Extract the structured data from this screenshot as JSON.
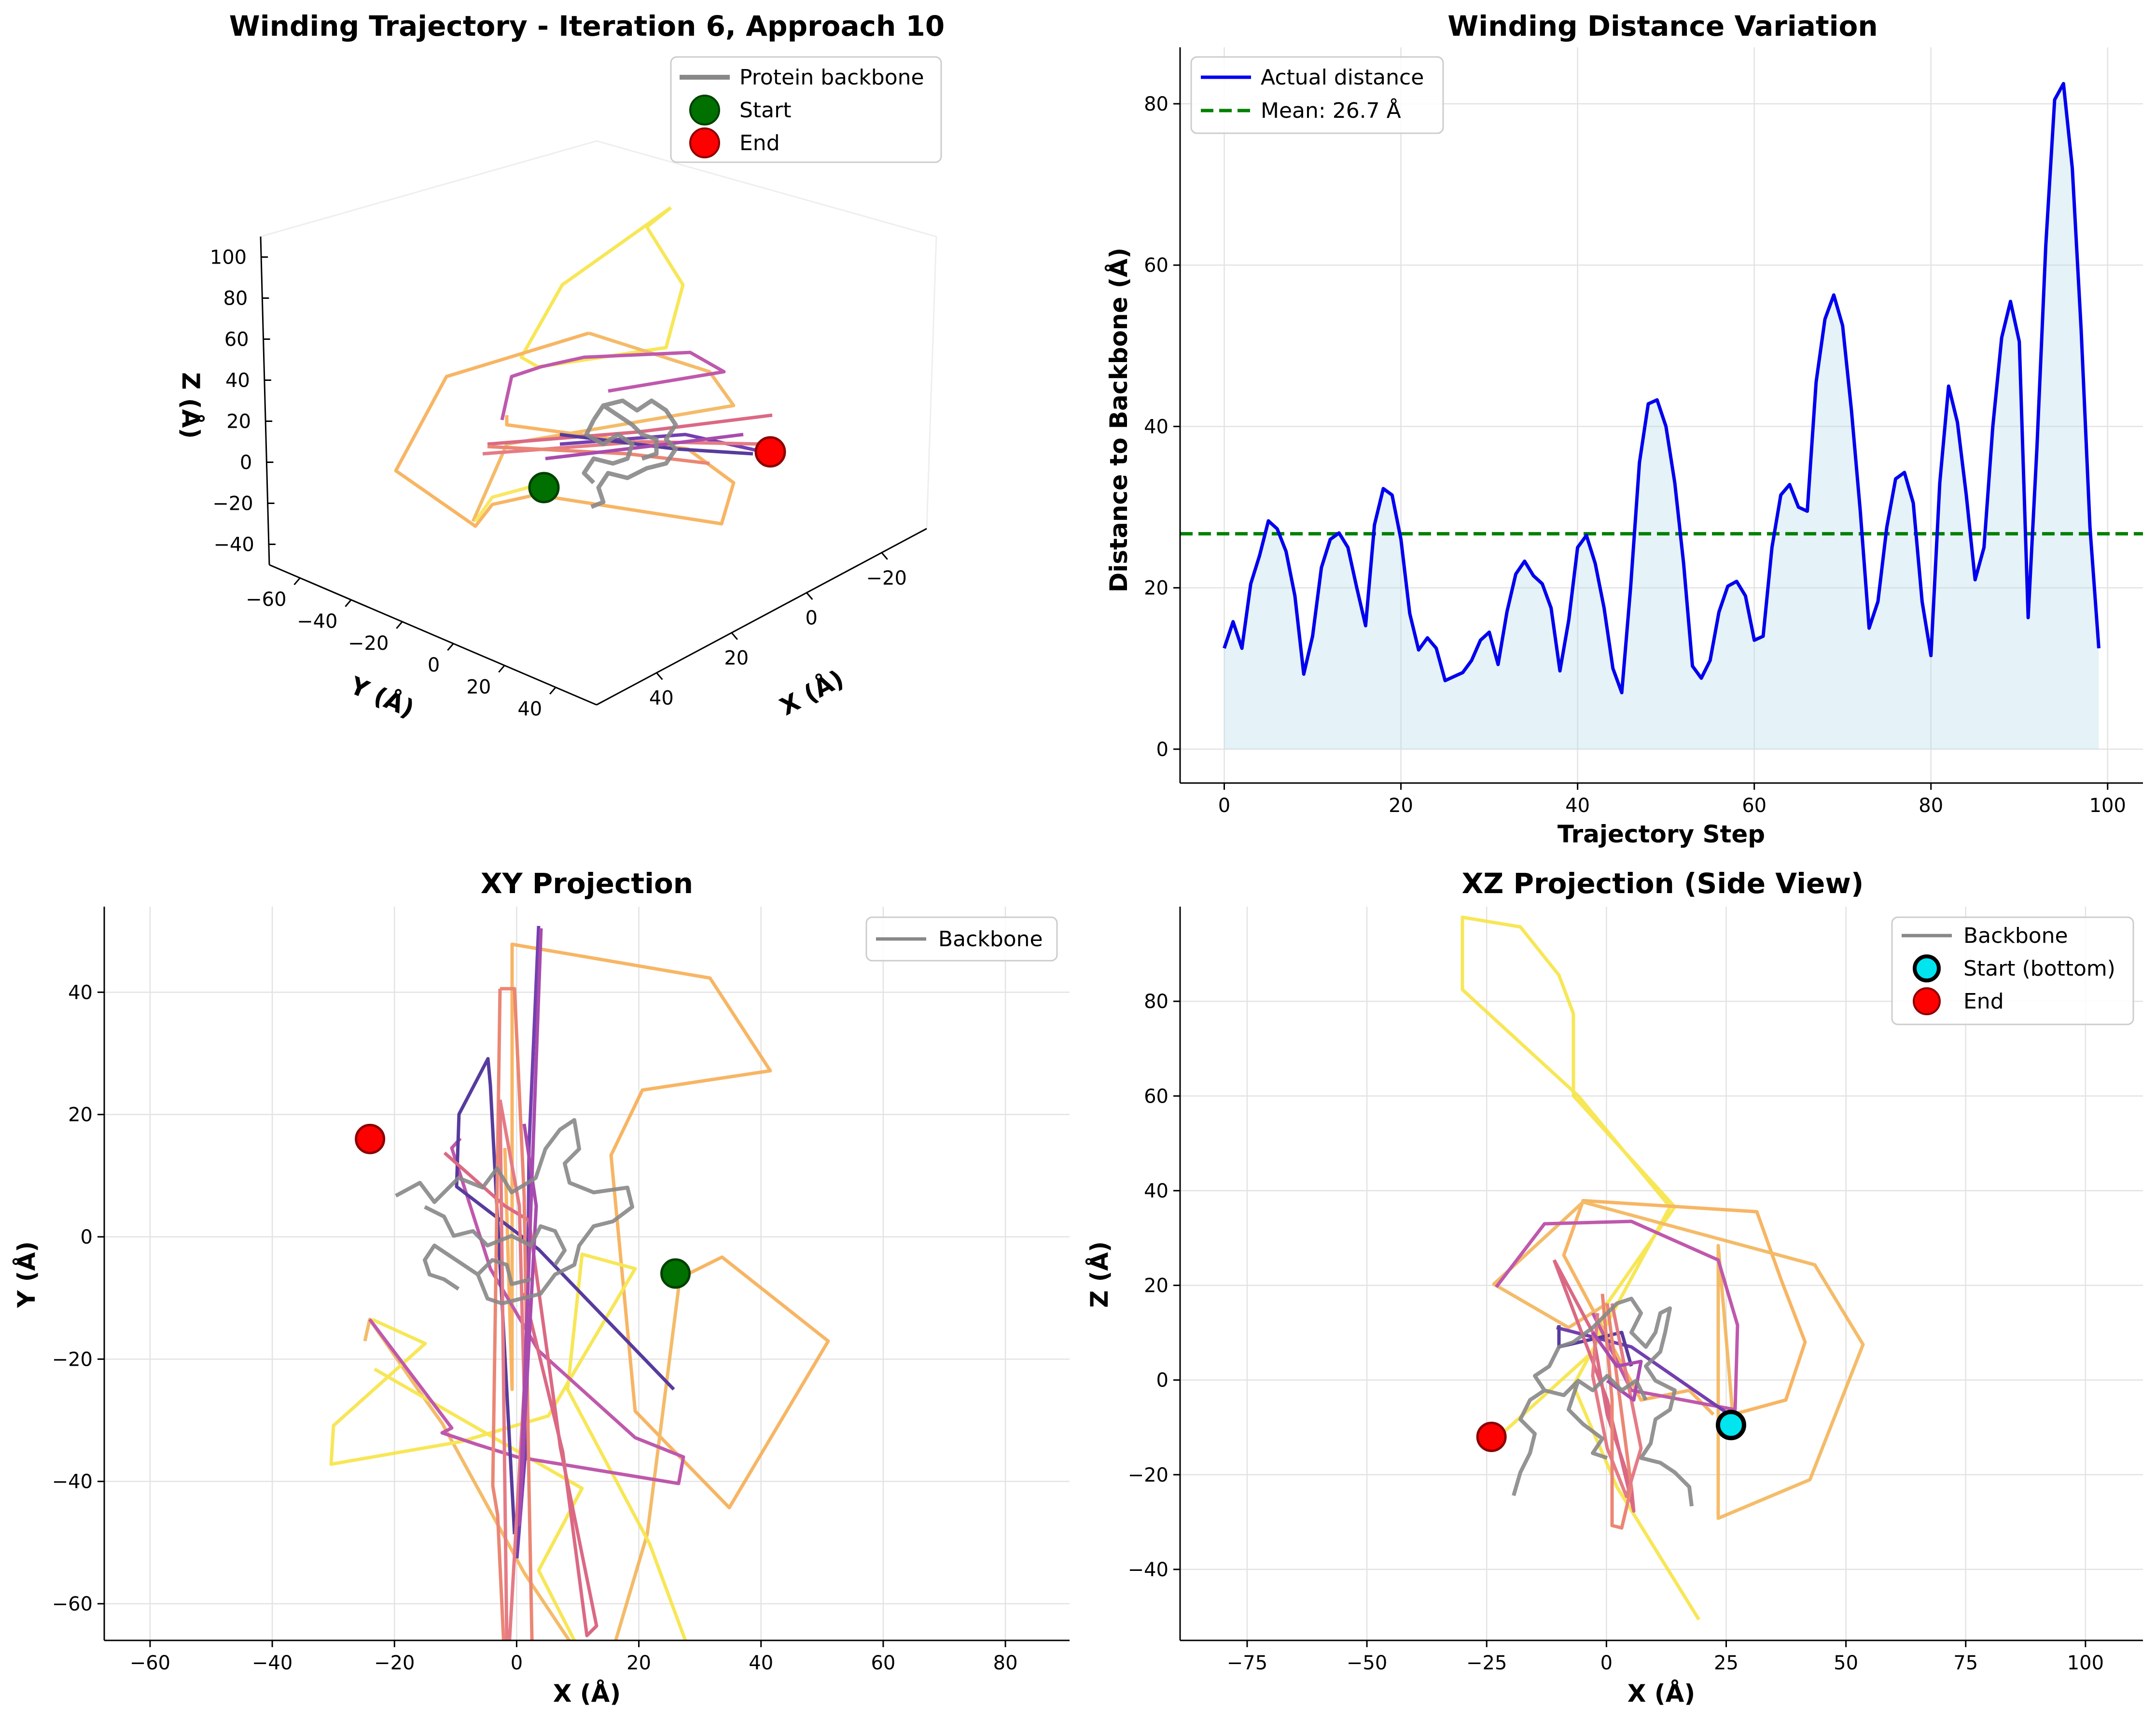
{
  "chart_data": [
    {
      "type": "line",
      "subtype": "3d-line",
      "title": "Winding Trajectory - Iteration 6, Approach 10",
      "xlabel": "X (Å)",
      "ylabel": "Y (Å)",
      "zlabel": "Z (Å)",
      "x_ticks": [
        -20,
        0,
        20,
        40
      ],
      "y_ticks": [
        -60,
        -40,
        -20,
        0,
        20,
        40
      ],
      "z_ticks": [
        -40,
        -20,
        0,
        20,
        40,
        60,
        80,
        100
      ],
      "legend": {
        "placement": "upper-right",
        "entries": [
          "Protein backbone",
          "Start",
          "End"
        ]
      },
      "colors": {
        "backbone": "#888888",
        "start": "#007000",
        "end": "#ff0000"
      }
    },
    {
      "type": "area",
      "title": "Winding Distance Variation",
      "xlabel": "Trajectory Step",
      "ylabel": "Distance to Backbone (Å)",
      "xlim": [
        -5,
        104
      ],
      "ylim": [
        -4.2,
        87
      ],
      "x_ticks": [
        0,
        20,
        40,
        60,
        80,
        100
      ],
      "y_ticks": [
        0,
        20,
        40,
        60,
        80
      ],
      "grid": true,
      "legend": {
        "placement": "upper-left",
        "entries": [
          "Actual distance",
          "Mean: 26.7 Å"
        ]
      },
      "mean": 26.7,
      "colors": {
        "line": "#0000ee",
        "fill": "#add8e6",
        "mean": "#008000"
      },
      "x": [
        0,
        1,
        2,
        3,
        4,
        5,
        6,
        7,
        8,
        9,
        10,
        11,
        12,
        13,
        14,
        15,
        16,
        17,
        18,
        19,
        20,
        21,
        22,
        23,
        24,
        25,
        26,
        27,
        28,
        29,
        30,
        31,
        32,
        33,
        34,
        35,
        36,
        37,
        38,
        39,
        40,
        41,
        42,
        43,
        44,
        45,
        46,
        47,
        48,
        49,
        50,
        51,
        52,
        53,
        54,
        55,
        56,
        57,
        58,
        59,
        60,
        61,
        62,
        63,
        64,
        65,
        66,
        67,
        68,
        69,
        70,
        71,
        72,
        73,
        74,
        75,
        76,
        77,
        78,
        79,
        80,
        81,
        82,
        83,
        84,
        85,
        86,
        87,
        88,
        89,
        90,
        91,
        92,
        93,
        94,
        95,
        96,
        97,
        98,
        99
      ],
      "y": [
        12.5,
        15.8,
        12.5,
        20.5,
        24,
        28.3,
        27.3,
        24.5,
        19,
        9.3,
        14,
        22.5,
        26,
        26.8,
        25,
        20,
        15.3,
        27.8,
        32.3,
        31.5,
        26,
        16.8,
        12.3,
        13.8,
        12.5,
        8.5,
        9,
        9.5,
        11,
        13.5,
        14.5,
        10.5,
        17,
        21.7,
        23.3,
        21.5,
        20.5,
        17.5,
        9.7,
        16,
        25,
        26.5,
        23,
        17.5,
        10,
        7,
        20,
        35.5,
        42.8,
        43.3,
        40,
        33,
        23,
        10.3,
        8.8,
        11,
        17,
        20.2,
        20.8,
        19,
        13.5,
        14,
        25,
        31.5,
        32.8,
        30,
        29.5,
        45.5,
        53.3,
        56.3,
        52.5,
        42,
        29.5,
        15,
        18.3,
        27.5,
        33.5,
        34.3,
        30.5,
        18.3,
        11.6,
        33,
        45,
        40.5,
        31.5,
        21,
        25,
        40,
        51,
        55.5,
        50.5,
        16.3,
        37.5,
        62.5,
        80.5,
        82.5,
        72,
        52,
        27.5,
        12.5
      ]
    },
    {
      "type": "line",
      "title": "XY Projection",
      "xlabel": "X (Å)",
      "ylabel": "Y (Å)",
      "xlim": [
        -67.5,
        90.5
      ],
      "ylim": [
        -66,
        54
      ],
      "x_ticks": [
        -60,
        -40,
        -20,
        0,
        20,
        40,
        60,
        80
      ],
      "y_ticks": [
        -60,
        -40,
        -20,
        0,
        20,
        40
      ],
      "grid": true,
      "legend": {
        "placement": "upper-right",
        "entries": [
          "Backbone"
        ]
      },
      "start": [
        26,
        -6
      ],
      "end": [
        -24,
        16
      ],
      "colors": {
        "backbone": "#888888",
        "start": "#007000",
        "end": "#ff0000"
      }
    },
    {
      "type": "line",
      "title": "XZ Projection (Side View)",
      "xlabel": "X (Å)",
      "ylabel": "Z (Å)",
      "xlim": [
        -89,
        112
      ],
      "ylim": [
        -55,
        100
      ],
      "x_ticks": [
        -75,
        -50,
        -25,
        0,
        25,
        50,
        75,
        100
      ],
      "y_ticks": [
        -40,
        -20,
        0,
        20,
        40,
        60,
        80
      ],
      "grid": true,
      "legend": {
        "placement": "upper-right",
        "entries": [
          "Backbone",
          "Start (bottom)",
          "End"
        ]
      },
      "start": [
        26,
        -9.5
      ],
      "end": [
        -24,
        -12
      ],
      "colors": {
        "backbone": "#888888",
        "start": "#00e5ee",
        "end": "#ff0000"
      }
    }
  ]
}
